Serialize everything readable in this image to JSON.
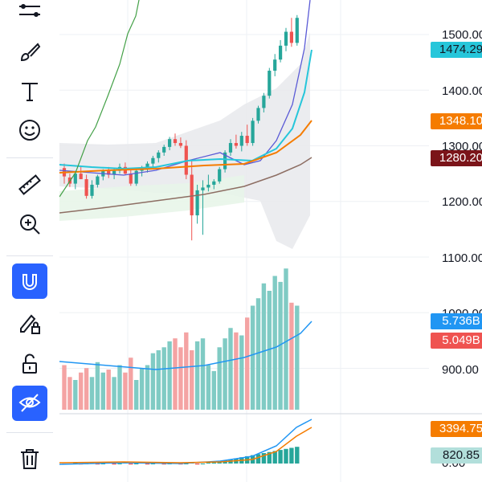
{
  "toolbar": {
    "tools": [
      {
        "name": "trend-tools-icon",
        "active": false
      },
      {
        "name": "brush-icon",
        "active": false
      },
      {
        "name": "text-tool-icon",
        "active": false
      },
      {
        "name": "emoji-icon",
        "active": false
      },
      {
        "name": "ruler-icon",
        "active": false
      },
      {
        "name": "zoom-in-icon",
        "active": false
      },
      {
        "name": "magnet-icon",
        "active": true
      },
      {
        "name": "lock-drawing-icon",
        "active": false
      },
      {
        "name": "unlock-icon",
        "active": false
      },
      {
        "name": "hide-drawings-icon",
        "active": true
      },
      {
        "name": "trash-icon",
        "active": false
      }
    ]
  },
  "chart_data": {
    "type": "candlestick",
    "price_axis_labels": [
      "1500.00",
      "1400.00",
      "1300.00",
      "1200.00",
      "1100.00",
      "1000.00",
      "900.00"
    ],
    "price_tags": [
      {
        "label": "1474.29",
        "bg": "#26c6da",
        "fg": "#131722"
      },
      {
        "label": "1348.10",
        "bg": "#f57c00",
        "fg": "#ffffff"
      },
      {
        "label": "1280.20",
        "bg": "#7b1419",
        "fg": "#ffffff"
      }
    ],
    "volume_tags": [
      {
        "label": "5.736B",
        "bg": "#2196f3",
        "fg": "#ffffff"
      },
      {
        "label": "5.049B",
        "bg": "#ef5350",
        "fg": "#ffffff"
      }
    ],
    "indicator_tags": [
      {
        "label": "3394.75",
        "bg": "#f57c00",
        "fg": "#ffffff"
      },
      {
        "label": "820.85",
        "bg": "#b2dfdb",
        "fg": "#131722"
      }
    ],
    "indicator_axis_label": "0.00",
    "colors": {
      "up": "#26a69a",
      "down": "#ef5350",
      "vol_up": "#80cbc4",
      "vol_down": "#f4a3a3",
      "ma_fast": "#5b5bd6",
      "ma_mid": "#26c6da",
      "ma_slow": "#f57c00",
      "ma_long": "#8d6e63",
      "green_line": "#43a047"
    }
  }
}
